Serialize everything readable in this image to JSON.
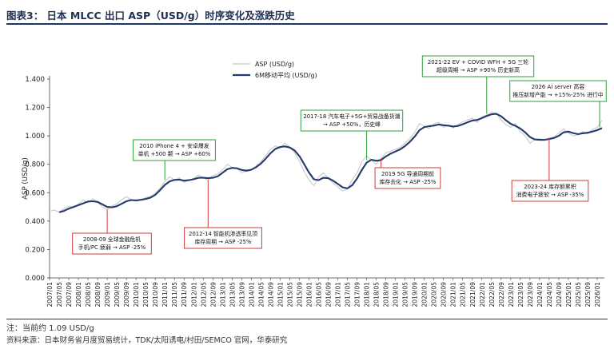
{
  "header": {
    "title": "图表3：  日本 MLCC 出口 ASP（USD/g）时序变化及涨跌历史"
  },
  "footer": {
    "note": "注：当前约 1.09 USD/g",
    "source": "资料来源：日本财务省月度贸易统计，TDK/太阳诱电/村田/SEMCO 官网，华泰研究"
  },
  "colors": {
    "raw": "#c4c4c4",
    "ma": "#233a6b",
    "up": "#2e9e3a",
    "down": "#d33a3a",
    "axis": "#444444",
    "title_rule": "#1e3766"
  },
  "chart_data": {
    "type": "line",
    "ylabel": "ASP (USD/g)",
    "xlabel": "",
    "ylim": [
      0,
      1.4
    ],
    "yticks": [
      "0.000",
      "0.200",
      "0.400",
      "0.600",
      "0.800",
      "1.000",
      "1.200",
      "1.400"
    ],
    "x_tick_labels": [
      "2007/01",
      "2007/05",
      "2007/09",
      "2008/01",
      "2008/05",
      "2008/09",
      "2009/01",
      "2009/05",
      "2009/09",
      "2010/01",
      "2010/05",
      "2010/09",
      "2011/01",
      "2011/05",
      "2011/09",
      "2012/01",
      "2012/05",
      "2012/09",
      "2013/01",
      "2013/05",
      "2013/09",
      "2014/01",
      "2014/05",
      "2014/09",
      "2015/01",
      "2015/05",
      "2015/09",
      "2016/01",
      "2016/05",
      "2016/09",
      "2017/01",
      "2017/05",
      "2017/09",
      "2018/01",
      "2018/05",
      "2018/09",
      "2019/01",
      "2019/05",
      "2019/09",
      "2020/01",
      "2020/05",
      "2020/09",
      "2021/01",
      "2021/05",
      "2021/09",
      "2022/01",
      "2022/05",
      "2022/09",
      "2023/01",
      "2023/05",
      "2023/09",
      "2024/01",
      "2024/05",
      "2024/09",
      "2025/01",
      "2025/05",
      "2025/09",
      "2026/01"
    ],
    "legend": {
      "position": "top-left",
      "items": [
        "ASP (USD/g)",
        "6M移动平均 (USD/g)"
      ]
    },
    "x_range": [
      "2007/01",
      "2026/04"
    ],
    "series": [
      {
        "name": "ASP (USD/g)",
        "style": "thin-light",
        "points": [
          [
            "2007/01",
            0.47
          ],
          [
            "2007/03",
            0.478
          ],
          [
            "2007/05",
            0.462
          ],
          [
            "2007/07",
            0.488
          ],
          [
            "2007/09",
            0.505
          ],
          [
            "2007/11",
            0.498
          ],
          [
            "2008/01",
            0.52
          ],
          [
            "2008/03",
            0.548
          ],
          [
            "2008/05",
            0.53
          ],
          [
            "2008/07",
            0.558
          ],
          [
            "2008/09",
            0.532
          ],
          [
            "2008/11",
            0.5
          ],
          [
            "2009/01",
            0.482
          ],
          [
            "2009/03",
            0.508
          ],
          [
            "2009/05",
            0.522
          ],
          [
            "2009/07",
            0.55
          ],
          [
            "2009/09",
            0.572
          ],
          [
            "2009/11",
            0.552
          ],
          [
            "2010/01",
            0.542
          ],
          [
            "2010/03",
            0.548
          ],
          [
            "2010/05",
            0.565
          ],
          [
            "2010/07",
            0.574
          ],
          [
            "2010/09",
            0.598
          ],
          [
            "2010/11",
            0.632
          ],
          [
            "2011/01",
            0.678
          ],
          [
            "2011/03",
            0.712
          ],
          [
            "2011/05",
            0.69
          ],
          [
            "2011/07",
            0.705
          ],
          [
            "2011/09",
            0.672
          ],
          [
            "2011/11",
            0.69
          ],
          [
            "2012/01",
            0.7
          ],
          [
            "2012/03",
            0.724
          ],
          [
            "2012/05",
            0.705
          ],
          [
            "2012/07",
            0.688
          ],
          [
            "2012/09",
            0.72
          ],
          [
            "2012/11",
            0.732
          ],
          [
            "2013/01",
            0.76
          ],
          [
            "2013/03",
            0.8
          ],
          [
            "2013/05",
            0.778
          ],
          [
            "2013/07",
            0.77
          ],
          [
            "2013/09",
            0.742
          ],
          [
            "2013/11",
            0.752
          ],
          [
            "2014/01",
            0.758
          ],
          [
            "2014/03",
            0.79
          ],
          [
            "2014/05",
            0.82
          ],
          [
            "2014/07",
            0.862
          ],
          [
            "2014/09",
            0.905
          ],
          [
            "2014/11",
            0.93
          ],
          [
            "2015/01",
            0.912
          ],
          [
            "2015/03",
            0.95
          ],
          [
            "2015/05",
            0.92
          ],
          [
            "2015/07",
            0.882
          ],
          [
            "2015/09",
            0.822
          ],
          [
            "2015/11",
            0.748
          ],
          [
            "2016/01",
            0.69
          ],
          [
            "2016/03",
            0.65
          ],
          [
            "2016/05",
            0.712
          ],
          [
            "2016/07",
            0.74
          ],
          [
            "2016/09",
            0.702
          ],
          [
            "2016/11",
            0.668
          ],
          [
            "2017/01",
            0.64
          ],
          [
            "2017/03",
            0.612
          ],
          [
            "2017/05",
            0.628
          ],
          [
            "2017/07",
            0.69
          ],
          [
            "2017/09",
            0.74
          ],
          [
            "2017/11",
            0.818
          ],
          [
            "2018/01",
            0.86
          ],
          [
            "2018/03",
            0.83
          ],
          [
            "2018/05",
            0.8
          ],
          [
            "2018/07",
            0.842
          ],
          [
            "2018/09",
            0.88
          ],
          [
            "2018/11",
            0.892
          ],
          [
            "2019/01",
            0.905
          ],
          [
            "2019/03",
            0.92
          ],
          [
            "2019/05",
            0.948
          ],
          [
            "2019/07",
            0.982
          ],
          [
            "2019/09",
            1.025
          ],
          [
            "2019/11",
            1.088
          ],
          [
            "2020/01",
            1.068
          ],
          [
            "2020/03",
            1.052
          ],
          [
            "2020/05",
            1.085
          ],
          [
            "2020/07",
            1.095
          ],
          [
            "2020/09",
            1.06
          ],
          [
            "2020/11",
            1.075
          ],
          [
            "2021/01",
            1.055
          ],
          [
            "2021/03",
            1.08
          ],
          [
            "2021/05",
            1.098
          ],
          [
            "2021/07",
            1.112
          ],
          [
            "2021/09",
            1.125
          ],
          [
            "2021/11",
            1.095
          ],
          [
            "2022/01",
            1.135
          ],
          [
            "2022/03",
            1.148
          ],
          [
            "2022/05",
            1.165
          ],
          [
            "2022/07",
            1.16
          ],
          [
            "2022/09",
            1.112
          ],
          [
            "2022/11",
            1.08
          ],
          [
            "2023/01",
            1.06
          ],
          [
            "2023/03",
            1.088
          ],
          [
            "2023/05",
            1.03
          ],
          [
            "2023/07",
            1.0
          ],
          [
            "2023/09",
            0.948
          ],
          [
            "2023/11",
            0.975
          ],
          [
            "2024/01",
            0.98
          ],
          [
            "2024/03",
            0.968
          ],
          [
            "2024/05",
            0.985
          ],
          [
            "2024/07",
            0.992
          ],
          [
            "2024/09",
            1.02
          ],
          [
            "2024/11",
            1.05
          ],
          [
            "2025/01",
            1.02
          ],
          [
            "2025/03",
            1.0
          ],
          [
            "2025/05",
            1.008
          ],
          [
            "2025/07",
            1.03
          ],
          [
            "2025/09",
            1.015
          ],
          [
            "2025/11",
            1.045
          ],
          [
            "2026/01",
            1.06
          ],
          [
            "2026/03",
            1.11
          ]
        ]
      },
      {
        "name": "6M移动平均 (USD/g)",
        "style": "thick-dark",
        "points": [
          [
            "2007/05",
            0.462
          ],
          [
            "2007/07",
            0.472
          ],
          [
            "2007/09",
            0.488
          ],
          [
            "2007/11",
            0.5
          ],
          [
            "2008/01",
            0.512
          ],
          [
            "2008/03",
            0.525
          ],
          [
            "2008/05",
            0.538
          ],
          [
            "2008/07",
            0.54
          ],
          [
            "2008/09",
            0.535
          ],
          [
            "2008/11",
            0.518
          ],
          [
            "2009/01",
            0.5
          ],
          [
            "2009/03",
            0.497
          ],
          [
            "2009/05",
            0.505
          ],
          [
            "2009/07",
            0.522
          ],
          [
            "2009/09",
            0.54
          ],
          [
            "2009/11",
            0.548
          ],
          [
            "2010/01",
            0.546
          ],
          [
            "2010/03",
            0.55
          ],
          [
            "2010/05",
            0.556
          ],
          [
            "2010/07",
            0.565
          ],
          [
            "2010/09",
            0.585
          ],
          [
            "2010/11",
            0.618
          ],
          [
            "2011/01",
            0.655
          ],
          [
            "2011/03",
            0.68
          ],
          [
            "2011/05",
            0.69
          ],
          [
            "2011/07",
            0.692
          ],
          [
            "2011/09",
            0.685
          ],
          [
            "2011/11",
            0.688
          ],
          [
            "2012/01",
            0.695
          ],
          [
            "2012/03",
            0.705
          ],
          [
            "2012/05",
            0.705
          ],
          [
            "2012/07",
            0.702
          ],
          [
            "2012/09",
            0.705
          ],
          [
            "2012/11",
            0.715
          ],
          [
            "2013/01",
            0.74
          ],
          [
            "2013/03",
            0.765
          ],
          [
            "2013/05",
            0.775
          ],
          [
            "2013/07",
            0.772
          ],
          [
            "2013/09",
            0.76
          ],
          [
            "2013/11",
            0.755
          ],
          [
            "2014/01",
            0.762
          ],
          [
            "2014/03",
            0.78
          ],
          [
            "2014/05",
            0.805
          ],
          [
            "2014/07",
            0.84
          ],
          [
            "2014/09",
            0.878
          ],
          [
            "2014/11",
            0.908
          ],
          [
            "2015/01",
            0.922
          ],
          [
            "2015/03",
            0.926
          ],
          [
            "2015/05",
            0.918
          ],
          [
            "2015/07",
            0.898
          ],
          [
            "2015/09",
            0.858
          ],
          [
            "2015/11",
            0.8
          ],
          [
            "2016/01",
            0.742
          ],
          [
            "2016/03",
            0.695
          ],
          [
            "2016/05",
            0.688
          ],
          [
            "2016/07",
            0.705
          ],
          [
            "2016/09",
            0.702
          ],
          [
            "2016/11",
            0.685
          ],
          [
            "2017/01",
            0.662
          ],
          [
            "2017/03",
            0.638
          ],
          [
            "2017/05",
            0.63
          ],
          [
            "2017/07",
            0.652
          ],
          [
            "2017/09",
            0.7
          ],
          [
            "2017/11",
            0.76
          ],
          [
            "2018/01",
            0.812
          ],
          [
            "2018/03",
            0.832
          ],
          [
            "2018/05",
            0.825
          ],
          [
            "2018/07",
            0.83
          ],
          [
            "2018/09",
            0.855
          ],
          [
            "2018/11",
            0.875
          ],
          [
            "2019/01",
            0.89
          ],
          [
            "2019/03",
            0.905
          ],
          [
            "2019/05",
            0.928
          ],
          [
            "2019/07",
            0.958
          ],
          [
            "2019/09",
            0.995
          ],
          [
            "2019/11",
            1.04
          ],
          [
            "2020/01",
            1.062
          ],
          [
            "2020/03",
            1.068
          ],
          [
            "2020/05",
            1.072
          ],
          [
            "2020/07",
            1.08
          ],
          [
            "2020/09",
            1.075
          ],
          [
            "2020/11",
            1.072
          ],
          [
            "2021/01",
            1.066
          ],
          [
            "2021/03",
            1.07
          ],
          [
            "2021/05",
            1.082
          ],
          [
            "2021/07",
            1.095
          ],
          [
            "2021/09",
            1.108
          ],
          [
            "2021/11",
            1.112
          ],
          [
            "2022/01",
            1.125
          ],
          [
            "2022/03",
            1.14
          ],
          [
            "2022/05",
            1.152
          ],
          [
            "2022/07",
            1.155
          ],
          [
            "2022/09",
            1.138
          ],
          [
            "2022/11",
            1.11
          ],
          [
            "2023/01",
            1.085
          ],
          [
            "2023/03",
            1.07
          ],
          [
            "2023/05",
            1.052
          ],
          [
            "2023/07",
            1.025
          ],
          [
            "2023/09",
            0.992
          ],
          [
            "2023/11",
            0.975
          ],
          [
            "2024/01",
            0.972
          ],
          [
            "2024/03",
            0.972
          ],
          [
            "2024/05",
            0.978
          ],
          [
            "2024/07",
            0.985
          ],
          [
            "2024/09",
            1.0
          ],
          [
            "2024/11",
            1.025
          ],
          [
            "2025/01",
            1.03
          ],
          [
            "2025/03",
            1.02
          ],
          [
            "2025/05",
            1.012
          ],
          [
            "2025/07",
            1.018
          ],
          [
            "2025/09",
            1.022
          ],
          [
            "2025/11",
            1.03
          ],
          [
            "2026/01",
            1.04
          ],
          [
            "2026/03",
            1.055
          ]
        ]
      }
    ],
    "annotations": [
      {
        "id": "2008-09",
        "kind": "down",
        "at": "2009/01",
        "value": 0.482,
        "lines": [
          "2008-09 全球金融危机",
          "手机/PC 疲弱 → ASP -25%"
        ]
      },
      {
        "id": "2010",
        "kind": "up",
        "at": "2011/01",
        "value": 0.69,
        "lines": [
          "2010 iPhone 4 + 安卓爆发",
          "单机 +500 颗 → ASP +60%"
        ]
      },
      {
        "id": "2012-14",
        "kind": "down",
        "at": "2012/07",
        "value": 0.69,
        "lines": [
          "2012-14 智能机渗透率见顶",
          "库存周期 → ASP -25%"
        ]
      },
      {
        "id": "2017-18",
        "kind": "up",
        "at": "2018/01",
        "value": 0.83,
        "lines": [
          "2017-18 汽车电子+5G+贸易战备货潮",
          "→ ASP +50%，历史峰"
        ]
      },
      {
        "id": "2019",
        "kind": "down",
        "at": "2018/07",
        "value": 0.84,
        "lines": [
          "2019 5G 导通周期前",
          "库存去化 → ASP -25%"
        ]
      },
      {
        "id": "2021-22",
        "kind": "up",
        "at": "2022/03",
        "value": 1.155,
        "lines": [
          "2021-22 EV + COVID WFH + 5G 三轮",
          "超级周期 → ASP +90% 历史新高"
        ]
      },
      {
        "id": "2026",
        "kind": "up",
        "at": "2026/02",
        "value": 1.06,
        "lines": [
          "2026 AI server 高容",
          "推压新增产能 → +15%-25% 进行中"
        ]
      },
      {
        "id": "2023-24",
        "kind": "down",
        "at": "2024/05",
        "value": 0.985,
        "lines": [
          "2023-24 库存额累积",
          "消费电子疲软 → ASP -35%"
        ]
      }
    ]
  }
}
